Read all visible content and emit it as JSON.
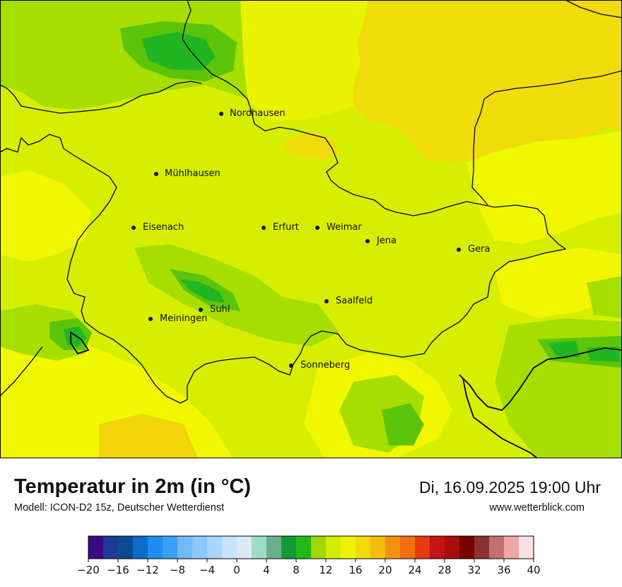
{
  "map": {
    "cities": [
      {
        "name": "Nordhausen",
        "icon": "city-dot"
      },
      {
        "name": "Mühlhausen",
        "icon": "city-dot"
      },
      {
        "name": "Eisenach",
        "icon": "city-dot"
      },
      {
        "name": "Erfurt",
        "icon": "city-dot"
      },
      {
        "name": "Weimar",
        "icon": "city-dot"
      },
      {
        "name": "Jena",
        "icon": "city-dot"
      },
      {
        "name": "Gera",
        "icon": "city-dot"
      },
      {
        "name": "Saalfeld",
        "icon": "city-dot"
      },
      {
        "name": "Suhl",
        "icon": "city-dot"
      },
      {
        "name": "Meiningen",
        "icon": "city-dot"
      },
      {
        "name": "Sonneberg",
        "icon": "city-dot"
      }
    ],
    "colors": {
      "base": "#d6ef00",
      "warm": "#f1dc0b",
      "yellow": "#f1f700",
      "green": "#98dc00",
      "dark_green": "#22b522",
      "border": "#000000"
    }
  },
  "footer": {
    "title": "Temperatur in 2m (in °C)",
    "subtitle": "Modell: ICON-D2 15z, Deutscher Wetterdienst",
    "datetime": "Di, 16.09.2025 19:00 Uhr",
    "website": "www.wetterblick.com"
  },
  "color_scale": {
    "min": -20,
    "max": 40,
    "step": 2,
    "tick_labels": [
      "−20",
      "−16",
      "−12",
      "−8",
      "−4",
      "0",
      "4",
      "8",
      "12",
      "16",
      "20",
      "24",
      "28",
      "32",
      "36",
      "40"
    ],
    "colors": [
      "#3a0a84",
      "#1f3a97",
      "#0c4a92",
      "#0a6ec8",
      "#1e8ef2",
      "#3aa0f5",
      "#6fbaf7",
      "#8cc8fa",
      "#a8d5fb",
      "#c6e3fc",
      "#dde9f7",
      "#9bdcc4",
      "#66b08a",
      "#149a35",
      "#22b81c",
      "#9fd805",
      "#d2ec00",
      "#f0f300",
      "#f2da0a",
      "#f2bd0c",
      "#f2910e",
      "#f0700f",
      "#e73a0f",
      "#c41414",
      "#a80d0d",
      "#7a0000",
      "#8c3131",
      "#c07070",
      "#f0a6a6",
      "#fce1e1"
    ]
  }
}
